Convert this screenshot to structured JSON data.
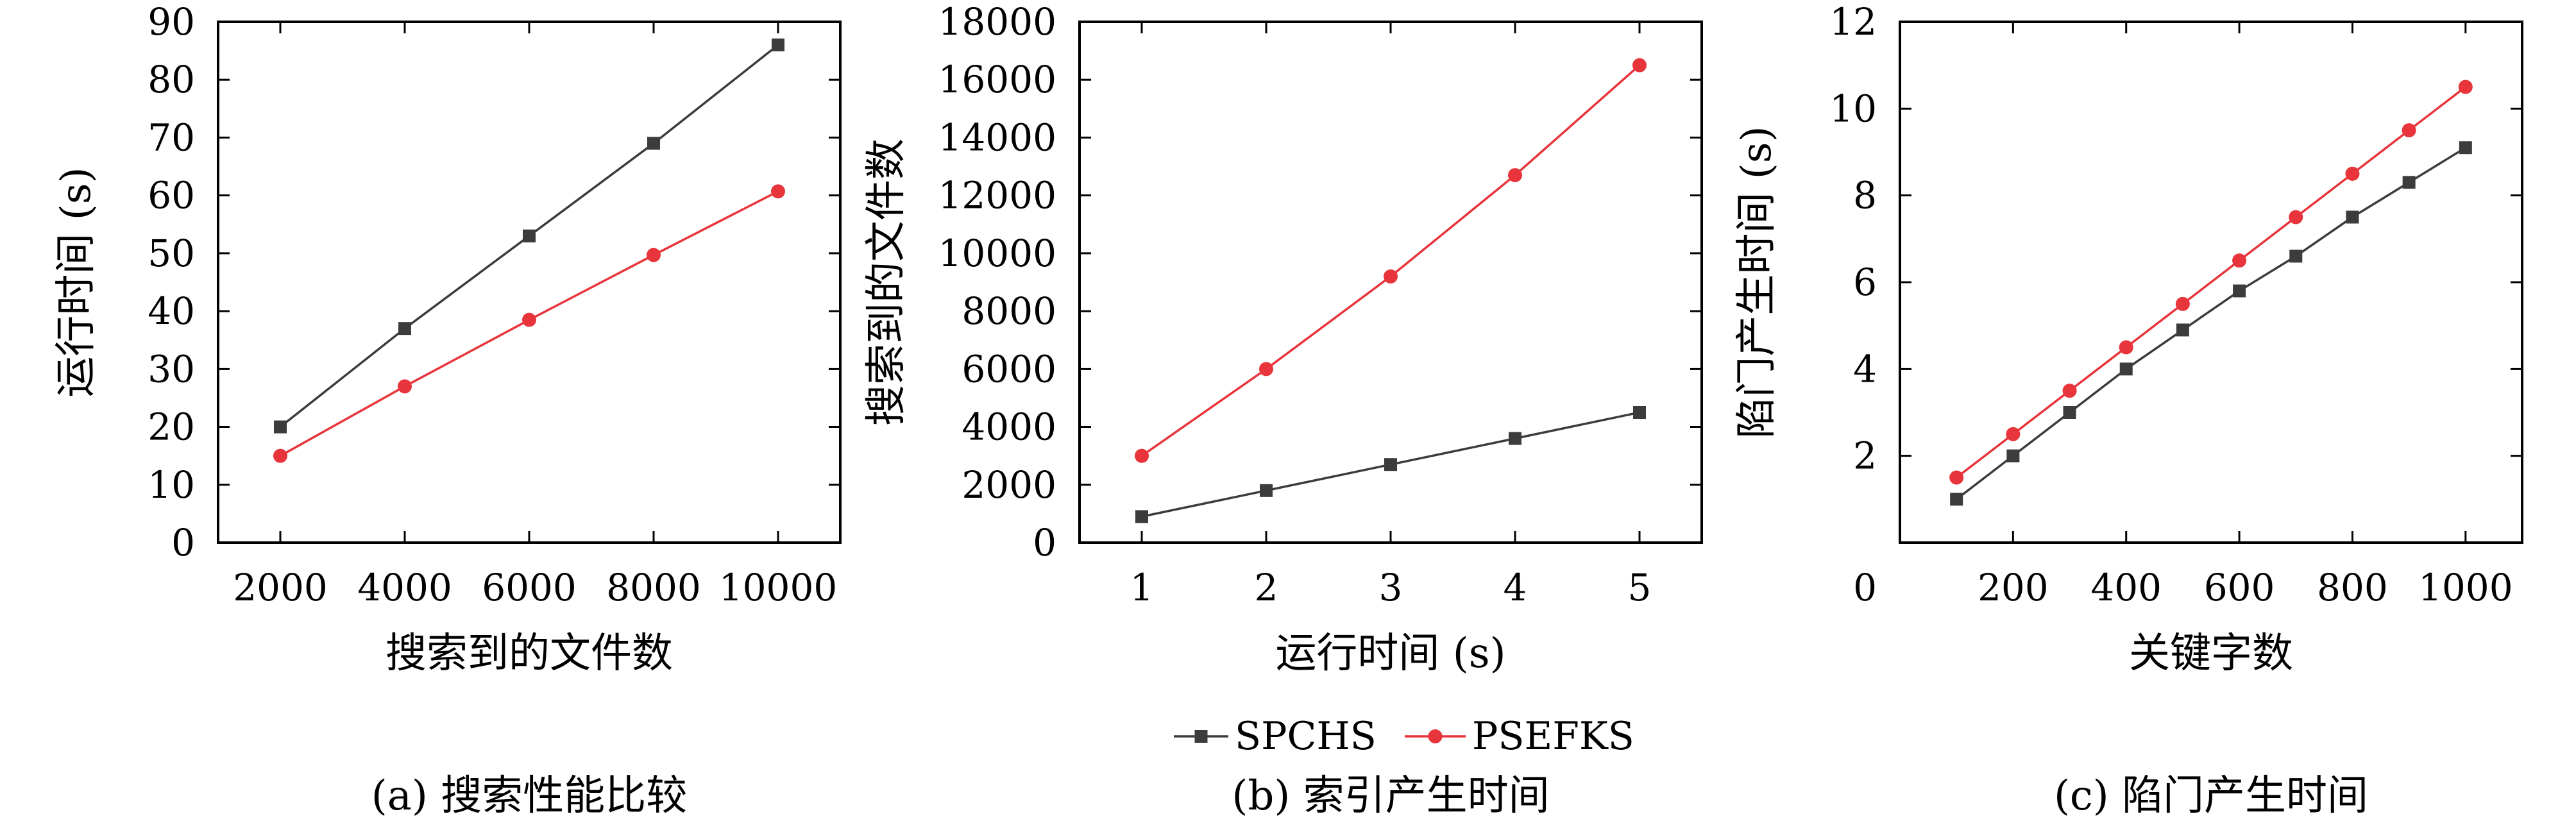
{
  "colors": {
    "spchs": "#3c3c3c",
    "psefks": "#e8343b",
    "axis": "#000000"
  },
  "legend": {
    "placement": "bottom-center",
    "items": [
      {
        "label": "SPCHS",
        "marker": "square",
        "color": "#3c3c3c"
      },
      {
        "label": "PSEFKS",
        "marker": "circle",
        "color": "#e8343b"
      }
    ]
  },
  "chart_data": [
    {
      "id": "a",
      "type": "line",
      "caption": "(a) 搜索性能比较",
      "xlabel": "搜索到的文件数",
      "ylabel": "运行时间 (s)",
      "x": [
        2000,
        4000,
        6000,
        8000,
        10000
      ],
      "xlim": [
        1000,
        11000
      ],
      "ylim": [
        0,
        90
      ],
      "xticks": [
        2000,
        4000,
        6000,
        8000,
        10000
      ],
      "yticks": [
        0,
        10,
        20,
        30,
        40,
        50,
        60,
        70,
        80,
        90
      ],
      "grid": false,
      "series": [
        {
          "name": "SPCHS",
          "values": [
            20,
            37,
            53,
            69,
            86
          ]
        },
        {
          "name": "PSEFKS",
          "values": [
            15,
            27,
            38.5,
            49.7,
            60.7
          ]
        }
      ]
    },
    {
      "id": "b",
      "type": "line",
      "caption": "(b) 索引产生时间",
      "xlabel": "运行时间 (s)",
      "ylabel": "搜索到的文件数",
      "x": [
        1,
        2,
        3,
        4,
        5
      ],
      "xlim": [
        0.5,
        5.5
      ],
      "ylim": [
        0,
        18000
      ],
      "xticks": [
        1,
        2,
        3,
        4,
        5
      ],
      "yticks": [
        0,
        2000,
        4000,
        6000,
        8000,
        10000,
        12000,
        14000,
        16000,
        18000
      ],
      "grid": false,
      "series": [
        {
          "name": "SPCHS",
          "values": [
            900,
            1800,
            2700,
            3600,
            4500
          ]
        },
        {
          "name": "PSEFKS",
          "values": [
            3000,
            6000,
            9200,
            12700,
            16500
          ]
        }
      ]
    },
    {
      "id": "c",
      "type": "line",
      "caption": "(c) 陷门产生时间",
      "xlabel": "关键字数",
      "ylabel": "陷门产生时间 (s)",
      "x": [
        100,
        200,
        300,
        400,
        500,
        600,
        700,
        800,
        900,
        1000
      ],
      "xlim": [
        0,
        1100
      ],
      "ylim": [
        0,
        12
      ],
      "xticks": [
        200,
        400,
        600,
        800,
        1000
      ],
      "yticks": [
        2,
        4,
        6,
        8,
        10,
        12
      ],
      "origin_label": "0",
      "grid": false,
      "series": [
        {
          "name": "SPCHS",
          "values": [
            1.0,
            2.0,
            3.0,
            4.0,
            4.9,
            5.8,
            6.6,
            7.5,
            8.3,
            9.1
          ]
        },
        {
          "name": "PSEFKS",
          "values": [
            1.5,
            2.5,
            3.5,
            4.5,
            5.5,
            6.5,
            7.5,
            8.5,
            9.5,
            10.5
          ]
        }
      ]
    }
  ]
}
